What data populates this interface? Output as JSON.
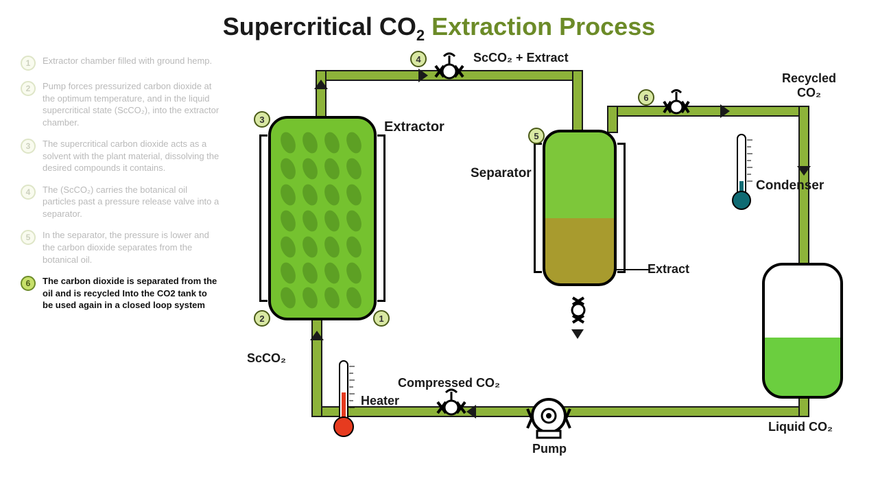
{
  "title": {
    "part1": "Supercritical CO",
    "sub": "2",
    "part2": " Extraction Process"
  },
  "steps": [
    {
      "n": "1",
      "text": "Extractor chamber filled with ground hemp.",
      "faded": true
    },
    {
      "n": "2",
      "text": "Pump forces pressurized carbon dioxide at the optimum temperature, and in the liquid supercritical state (ScCO₂), into the extractor chamber.",
      "faded": true
    },
    {
      "n": "3",
      "text": "The supercritical carbon dioxide acts as a solvent with the plant material, dissolving the desired compounds it contains.",
      "faded": true
    },
    {
      "n": "4",
      "text": "The (ScCO₂) carries the botanical oil particles past a pressure release valve into a separator.",
      "faded": true
    },
    {
      "n": "5",
      "text": "In the separator, the pressure is lower and the carbon dioxide separates from the botanical oil.",
      "faded": true
    },
    {
      "n": "6",
      "text": "The carbon dioxide is separated from the oil and is recycled  Into the CO2 tank to be used again in a closed loop system",
      "faded": false
    }
  ],
  "labels": {
    "extractor": "Extractor",
    "separator": "Separator",
    "condenser": "Condenser",
    "heater": "Heater",
    "pump": "Pump",
    "scco2_extract": "ScCO₂ + Extract",
    "recycled_co2_1": "Recycled",
    "recycled_co2_2": "CO₂",
    "extract": "Extract",
    "compressed_co2": "Compressed CO₂",
    "liquid_co2": "Liquid CO₂",
    "scco2": "ScCO₂"
  },
  "colors": {
    "pipe_outer": "#8db33a",
    "pipe_border": "#1a1a1a",
    "extractor_fill": "#75c22f",
    "extractor_dark": "#5da024",
    "separator_top": "#7dc73a",
    "separator_bottom": "#a89b2e",
    "co2tank_fill": "#6bce3f",
    "badge_bg": "#d9e8a3",
    "heater_red": "#e63b1f",
    "condenser_teal": "#0f6b73"
  },
  "diagram_badges": {
    "b1": "1",
    "b2": "2",
    "b3": "3",
    "b4": "4",
    "b5": "5",
    "b6": "6"
  }
}
